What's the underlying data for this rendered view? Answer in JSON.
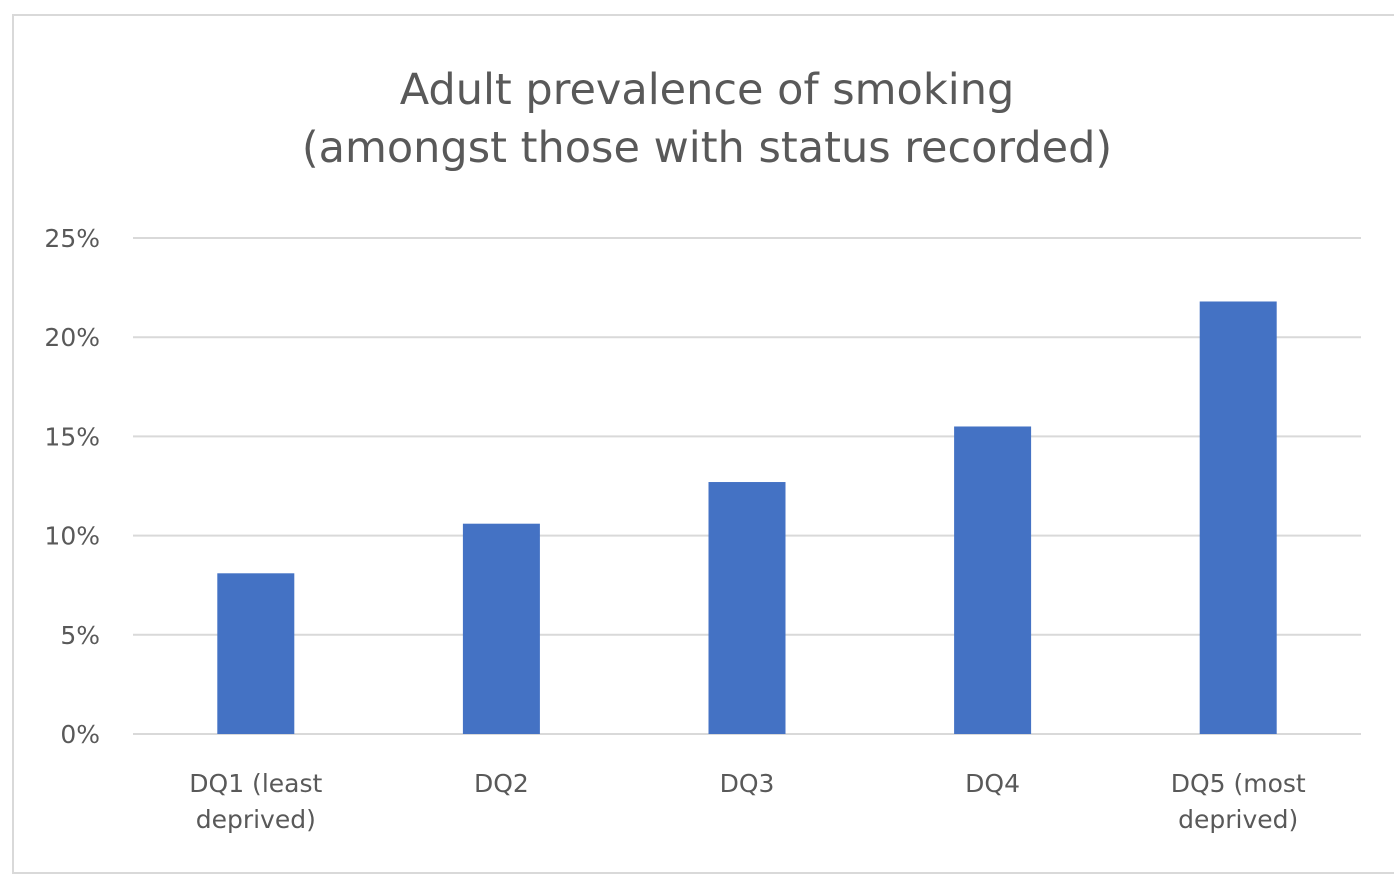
{
  "chart_data": {
    "type": "bar",
    "title_lines": [
      "Adult prevalence of smoking",
      "(amongst those with status recorded)"
    ],
    "categories": [
      [
        "DQ1 (least",
        "deprived)"
      ],
      [
        "DQ2"
      ],
      [
        "DQ3"
      ],
      [
        "DQ4"
      ],
      [
        "DQ5 (most",
        "deprived)"
      ]
    ],
    "values": [
      8.1,
      10.6,
      12.7,
      15.5,
      21.8
    ],
    "ylim": [
      0,
      25
    ],
    "yticks": [
      0,
      5,
      10,
      15,
      20,
      25
    ],
    "ytick_labels": [
      "0%",
      "5%",
      "10%",
      "15%",
      "20%",
      "25%"
    ],
    "xlabel": "",
    "ylabel": "",
    "grid": true,
    "legend": "none",
    "colors": {
      "bar": "#4472c4",
      "grid": "#d9d9d9",
      "text": "#595959",
      "border": "#d9d9d9"
    }
  }
}
